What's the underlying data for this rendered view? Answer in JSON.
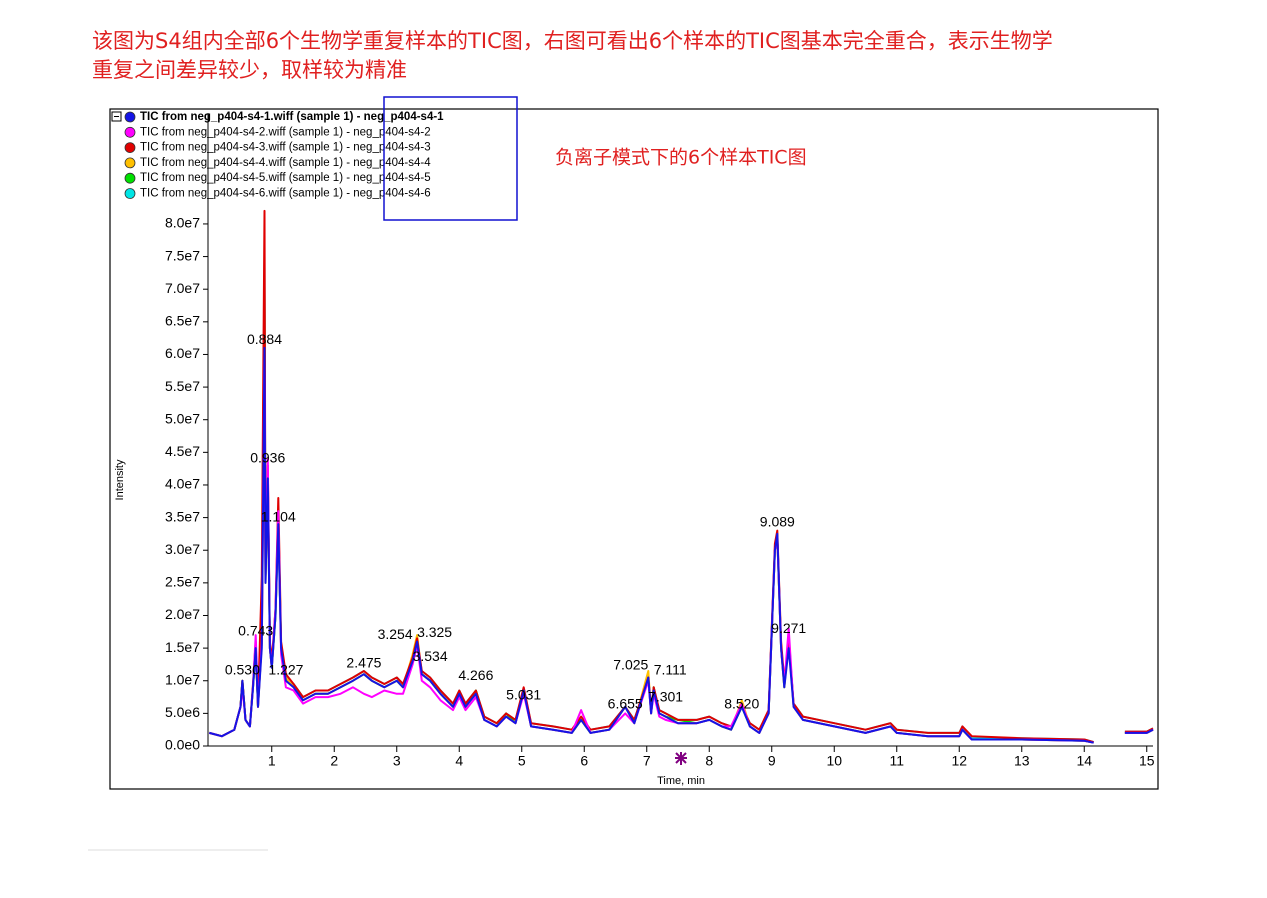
{
  "header": {
    "lines": [
      "该图为S4组内全部6个生物学重复样本的TIC图，右图可看出6个样本的TIC图基本完全重合，表示生物学",
      "重复之间差异较少，取样较为精准"
    ]
  },
  "chart_data": {
    "type": "line",
    "note": "负离子模式下的6个样本TIC图",
    "x_label": "Time, min",
    "y_label": "Intensity",
    "xlim": [
      -0.02,
      15.1
    ],
    "ylim": [
      0,
      97000000.0
    ],
    "xticks": [
      1,
      2,
      3,
      4,
      5,
      6,
      7,
      8,
      9,
      10,
      11,
      12,
      13,
      14,
      15
    ],
    "yticks": [
      {
        "value": 0,
        "label": "0.0e0"
      },
      {
        "value": 5000000.0,
        "label": "5.0e6"
      },
      {
        "value": 10000000.0,
        "label": "1.0e7"
      },
      {
        "value": 15000000.0,
        "label": "1.5e7"
      },
      {
        "value": 20000000.0,
        "label": "2.0e7"
      },
      {
        "value": 25000000.0,
        "label": "2.5e7"
      },
      {
        "value": 30000000.0,
        "label": "3.0e7"
      },
      {
        "value": 35000000.0,
        "label": "3.5e7"
      },
      {
        "value": 40000000.0,
        "label": "4.0e7"
      },
      {
        "value": 45000000.0,
        "label": "4.5e7"
      },
      {
        "value": 50000000.0,
        "label": "5.0e7"
      },
      {
        "value": 55000000.0,
        "label": "5.5e7"
      },
      {
        "value": 60000000.0,
        "label": "6.0e7"
      },
      {
        "value": 65000000.0,
        "label": "6.5e7"
      },
      {
        "value": 70000000.0,
        "label": "7.0e7"
      },
      {
        "value": 75000000.0,
        "label": "7.5e7"
      },
      {
        "value": 80000000.0,
        "label": "8.0e7"
      }
    ],
    "x": [
      0,
      0.2,
      0.4,
      0.5,
      0.53,
      0.58,
      0.65,
      0.7,
      0.743,
      0.78,
      0.84,
      0.884,
      0.9,
      0.936,
      0.97,
      1.0,
      1.06,
      1.104,
      1.15,
      1.227,
      1.35,
      1.5,
      1.7,
      1.9,
      2.1,
      2.3,
      2.475,
      2.6,
      2.8,
      3.0,
      3.1,
      3.254,
      3.325,
      3.4,
      3.534,
      3.7,
      3.9,
      4.0,
      4.1,
      4.266,
      4.4,
      4.6,
      4.75,
      4.9,
      5.031,
      5.15,
      5.5,
      5.8,
      5.95,
      6.1,
      6.4,
      6.655,
      6.8,
      7.025,
      7.07,
      7.111,
      7.2,
      7.301,
      7.5,
      7.8,
      8.0,
      8.2,
      8.35,
      8.52,
      8.65,
      8.8,
      8.95,
      9.05,
      9.089,
      9.15,
      9.2,
      9.271,
      9.35,
      9.5,
      10.0,
      10.5,
      10.9,
      11.0,
      11.5,
      12.0,
      12.05,
      12.2,
      13.0,
      14.0,
      14.15,
      14.4,
      14.65,
      15.0,
      15.1
    ],
    "series": [
      {
        "name": "TIC from neg_p404-s4-1.wiff (sample 1) - neg_p404-s4-1",
        "color": "#1414e6",
        "values": [
          2000000.0,
          1500000.0,
          2500000.0,
          6000000.0,
          10000000.0,
          4000000.0,
          3000000.0,
          9000000.0,
          15000000.0,
          6000000.0,
          15000000.0,
          61000000.0,
          25000000.0,
          41000000.0,
          15000000.0,
          12000000.0,
          20000000.0,
          34000000.0,
          15000000.0,
          10000000.0,
          9000000.0,
          7000000.0,
          8000000.0,
          8000000.0,
          9000000.0,
          10000000.0,
          11000000.0,
          10000000.0,
          9000000.0,
          10000000.0,
          9000000.0,
          13000000.0,
          16000000.0,
          11000000.0,
          10000000.0,
          8000000.0,
          6000000.0,
          8000000.0,
          6000000.0,
          8000000.0,
          4000000.0,
          3000000.0,
          4500000.0,
          3500000.0,
          8500000.0,
          3000000.0,
          2500000.0,
          2000000.0,
          4000000.0,
          2000000.0,
          2500000.0,
          6000000.0,
          3500000.0,
          10500000.0,
          5000000.0,
          8500000.0,
          5000000.0,
          4500000.0,
          3500000.0,
          3500000.0,
          4000000.0,
          3000000.0,
          2500000.0,
          6000000.0,
          3000000.0,
          2000000.0,
          5000000.0,
          30000000.0,
          32500000.0,
          15000000.0,
          9000000.0,
          15000000.0,
          6000000.0,
          4000000.0,
          3000000.0,
          2000000.0,
          3000000.0,
          2000000.0,
          1500000.0,
          1500000.0,
          2500000.0,
          1000000.0,
          1000000.0,
          800000.0,
          500000.0,
          null,
          2000000.0,
          2000000.0,
          2500000.0
        ]
      },
      {
        "name": "TIC from neg_p404-s4-2.wiff (sample 1) - neg_p404-s4-2",
        "color": "#ff00ff",
        "values": [
          2000000.0,
          1500000.0,
          2500000.0,
          6000000.0,
          9000000.0,
          4000000.0,
          3000000.0,
          9000000.0,
          17000000.0,
          6000000.0,
          16000000.0,
          60000000.0,
          26000000.0,
          44000000.0,
          15000000.0,
          12000000.0,
          21000000.0,
          36000000.0,
          14000000.0,
          9000000.0,
          8500000.0,
          6500000.0,
          7500000.0,
          7500000.0,
          8000000.0,
          9000000.0,
          8000000.0,
          7500000.0,
          8500000.0,
          8000000.0,
          8000000.0,
          12500000.0,
          15500000.0,
          10000000.0,
          9000000.0,
          7000000.0,
          5500000.0,
          7500000.0,
          5500000.0,
          7500000.0,
          4000000.0,
          3000000.0,
          4500000.0,
          3500000.0,
          8000000.0,
          3000000.0,
          2500000.0,
          2000000.0,
          5500000.0,
          2000000.0,
          2500000.0,
          5000000.0,
          3500000.0,
          10000000.0,
          5000000.0,
          8000000.0,
          4500000.0,
          4000000.0,
          3500000.0,
          3500000.0,
          4000000.0,
          3000000.0,
          3000000.0,
          6500000.0,
          3000000.0,
          2000000.0,
          5000000.0,
          30000000.0,
          32000000.0,
          15000000.0,
          9500000.0,
          18000000.0,
          6000000.0,
          4000000.0,
          3000000.0,
          2000000.0,
          3000000.0,
          2000000.0,
          1500000.0,
          1500000.0,
          2500000.0,
          1000000.0,
          1000000.0,
          800000.0,
          500000.0,
          null,
          2000000.0,
          2000000.0,
          2500000.0
        ]
      },
      {
        "name": "TIC from neg_p404-s4-3.wiff (sample 1) - neg_p404-s4-3",
        "color": "#e00000",
        "values": [
          2000000.0,
          1500000.0,
          2500000.0,
          6000000.0,
          10000000.0,
          4000000.0,
          3000000.0,
          9500000.0,
          16000000.0,
          6000000.0,
          26000000.0,
          82000000.0,
          26000000.0,
          43000000.0,
          16000000.0,
          13000000.0,
          21000000.0,
          38000000.0,
          16000000.0,
          11000000.0,
          9500000.0,
          7500000.0,
          8500000.0,
          8500000.0,
          9500000.0,
          10500000.0,
          11500000.0,
          10500000.0,
          9500000.0,
          10500000.0,
          9500000.0,
          13500000.0,
          16500000.0,
          11500000.0,
          10500000.0,
          8500000.0,
          6500000.0,
          8500000.0,
          6500000.0,
          8500000.0,
          4500000.0,
          3500000.0,
          5000000.0,
          4000000.0,
          9000000.0,
          3500000.0,
          3000000.0,
          2500000.0,
          4500000.0,
          2500000.0,
          3000000.0,
          6000000.0,
          4000000.0,
          10500000.0,
          5500000.0,
          9000000.0,
          5500000.0,
          5000000.0,
          4000000.0,
          4000000.0,
          4500000.0,
          3500000.0,
          3000000.0,
          6000000.0,
          3500000.0,
          2500000.0,
          5500000.0,
          31000000.0,
          33000000.0,
          16000000.0,
          10000000.0,
          16000000.0,
          6500000.0,
          4500000.0,
          3500000.0,
          2500000.0,
          3500000.0,
          2500000.0,
          2000000.0,
          2000000.0,
          3000000.0,
          1500000.0,
          1200000.0,
          1000000.0,
          600000.0,
          null,
          2200000.0,
          2200000.0,
          2700000.0
        ]
      },
      {
        "name": "TIC from neg_p404-s4-4.wiff (sample 1) - neg_p404-s4-4",
        "color": "#ffc000",
        "values": [
          2000000.0,
          1500000.0,
          2500000.0,
          6000000.0,
          10000000.0,
          4000000.0,
          3000000.0,
          9000000.0,
          15000000.0,
          6000000.0,
          16000000.0,
          65000000.0,
          25000000.0,
          42000000.0,
          15000000.0,
          12000000.0,
          20000000.0,
          35000000.0,
          15000000.0,
          10500000.0,
          9000000.0,
          7000000.0,
          8000000.0,
          8000000.0,
          9000000.0,
          10000000.0,
          11000000.0,
          10000000.0,
          9000000.0,
          10000000.0,
          9000000.0,
          14000000.0,
          17000000.0,
          11000000.0,
          10000000.0,
          8000000.0,
          6000000.0,
          8000000.0,
          6000000.0,
          8000000.0,
          4000000.0,
          3000000.0,
          4500000.0,
          3500000.0,
          8500000.0,
          3000000.0,
          2500000.0,
          2000000.0,
          4000000.0,
          2000000.0,
          2500000.0,
          6000000.0,
          3500000.0,
          11500000.0,
          5000000.0,
          8500000.0,
          5000000.0,
          4500000.0,
          3500000.0,
          3500000.0,
          4000000.0,
          3000000.0,
          2500000.0,
          7000000.0,
          3000000.0,
          2000000.0,
          5000000.0,
          30000000.0,
          32000000.0,
          15000000.0,
          9000000.0,
          16000000.0,
          6000000.0,
          4000000.0,
          3000000.0,
          2000000.0,
          3000000.0,
          2000000.0,
          1500000.0,
          1500000.0,
          2500000.0,
          1000000.0,
          1000000.0,
          800000.0,
          500000.0,
          null,
          2000000.0,
          2000000.0,
          2500000.0
        ]
      },
      {
        "name": "TIC from neg_p404-s4-5.wiff (sample 1) - neg_p404-s4-5",
        "color": "#00e000",
        "values": [
          2000000.0,
          1500000.0,
          2500000.0,
          6000000.0,
          10000000.0,
          4000000.0,
          3000000.0,
          9000000.0,
          15000000.0,
          6000000.0,
          16000000.0,
          70000000.0,
          26000000.0,
          42000000.0,
          15000000.0,
          12000000.0,
          20000000.0,
          35000000.0,
          15000000.0,
          10000000.0,
          9000000.0,
          7000000.0,
          8000000.0,
          8000000.0,
          9000000.0,
          10000000.0,
          11000000.0,
          10000000.0,
          9000000.0,
          10000000.0,
          9000000.0,
          13000000.0,
          16000000.0,
          11000000.0,
          10000000.0,
          8000000.0,
          6000000.0,
          8000000.0,
          6000000.0,
          8500000.0,
          4000000.0,
          3000000.0,
          5000000.0,
          3500000.0,
          8500000.0,
          3000000.0,
          2500000.0,
          2000000.0,
          4000000.0,
          2000000.0,
          2500000.0,
          6000000.0,
          3500000.0,
          10500000.0,
          5000000.0,
          9000000.0,
          5000000.0,
          4500000.0,
          4000000.0,
          3500000.0,
          4000000.0,
          3000000.0,
          2500000.0,
          6000000.0,
          3000000.0,
          2000000.0,
          5000000.0,
          30000000.0,
          32000000.0,
          15000000.0,
          9000000.0,
          17000000.0,
          6000000.0,
          4000000.0,
          3000000.0,
          2000000.0,
          3000000.0,
          2000000.0,
          1500000.0,
          1500000.0,
          2500000.0,
          1000000.0,
          1000000.0,
          800000.0,
          500000.0,
          null,
          2000000.0,
          2000000.0,
          2500000.0
        ]
      },
      {
        "name": "TIC from neg_p404-s4-6.wiff (sample 1) - neg_p404-s4-6",
        "color": "#00e5e5",
        "values": [
          2000000.0,
          1500000.0,
          2500000.0,
          6000000.0,
          10000000.0,
          4000000.0,
          3000000.0,
          9000000.0,
          15000000.0,
          6000000.0,
          22000000.0,
          75000000.0,
          25000000.0,
          41000000.0,
          15000000.0,
          12000000.0,
          20000000.0,
          34000000.0,
          15000000.0,
          10000000.0,
          9500000.0,
          7500000.0,
          8500000.0,
          8500000.0,
          9500000.0,
          10500000.0,
          11500000.0,
          10500000.0,
          9500000.0,
          10500000.0,
          9500000.0,
          13000000.0,
          16000000.0,
          11500000.0,
          10500000.0,
          8500000.0,
          6500000.0,
          8500000.0,
          6500000.0,
          8500000.0,
          4500000.0,
          3500000.0,
          5000000.0,
          4000000.0,
          8500000.0,
          3500000.0,
          3000000.0,
          2500000.0,
          4000000.0,
          2500000.0,
          3000000.0,
          6000000.0,
          4000000.0,
          10500000.0,
          5500000.0,
          8500000.0,
          5500000.0,
          5000000.0,
          4000000.0,
          4000000.0,
          4500000.0,
          3500000.0,
          3000000.0,
          6000000.0,
          3500000.0,
          2500000.0,
          5000000.0,
          30000000.0,
          32000000.0,
          15000000.0,
          9500000.0,
          16000000.0,
          6500000.0,
          4500000.0,
          3500000.0,
          2500000.0,
          3500000.0,
          2500000.0,
          2000000.0,
          2000000.0,
          3000000.0,
          1200000.0,
          1200000.0,
          1000000.0,
          600000.0,
          null,
          2200000.0,
          2200000.0,
          2700000.0
        ]
      }
    ],
    "peak_labels": [
      {
        "x": 0.53,
        "label": "0.530",
        "y": 11500000.0
      },
      {
        "x": 0.743,
        "label": "0.743",
        "y": 17500000.0
      },
      {
        "x": 0.884,
        "label": "0.884",
        "y": 62200000.0
      },
      {
        "x": 0.936,
        "label": "0.936",
        "y": 44000000.0
      },
      {
        "x": 1.104,
        "label": "1.104",
        "y": 35000000.0
      },
      {
        "x": 1.227,
        "label": "1.227",
        "y": 11500000.0
      },
      {
        "x": 2.475,
        "label": "2.475",
        "y": 12600000.0
      },
      {
        "x": 3.254,
        "label": "3.254",
        "y": 17000000.0
      },
      {
        "x": 3.325,
        "label": "3.325",
        "y": 17300000.0
      },
      {
        "x": 3.534,
        "label": "3.534",
        "y": 13600000.0
      },
      {
        "x": 4.266,
        "label": "4.266",
        "y": 10700000.0
      },
      {
        "x": 5.031,
        "label": "5.031",
        "y": 7700000.0
      },
      {
        "x": 6.655,
        "label": "6.655",
        "y": 6300000.0
      },
      {
        "x": 7.025,
        "label": "7.025",
        "y": 12300000.0
      },
      {
        "x": 7.111,
        "label": "7.111",
        "y": 11500000.0
      },
      {
        "x": 7.301,
        "label": "7.301",
        "y": 7400000.0
      },
      {
        "x": 8.52,
        "label": "8.520",
        "y": 6300000.0
      },
      {
        "x": 9.089,
        "label": "9.089",
        "y": 34200000.0
      },
      {
        "x": 9.271,
        "label": "9.271",
        "y": 17900000.0
      }
    ]
  }
}
